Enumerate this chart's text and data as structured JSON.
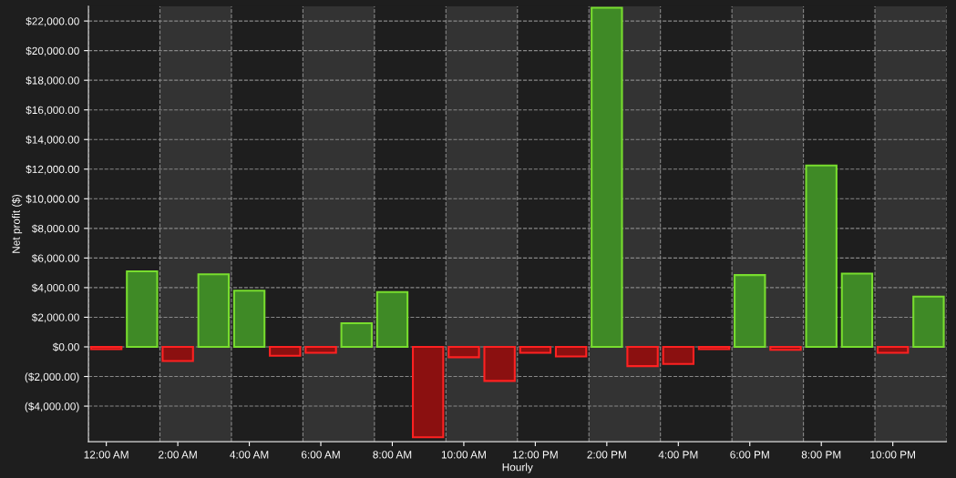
{
  "chart_data": {
    "type": "bar",
    "xlabel": "Hourly",
    "ylabel": "Net profit ($)",
    "x": [
      0,
      1,
      2,
      3,
      4,
      5,
      6,
      7,
      8,
      9,
      10,
      11,
      12,
      13,
      14,
      15,
      16,
      17,
      18,
      19,
      20,
      21,
      22,
      23
    ],
    "values": [
      -150,
      5100,
      -950,
      4900,
      3800,
      -600,
      -400,
      1600,
      3700,
      -6100,
      -700,
      -2300,
      -400,
      -650,
      22900,
      -1300,
      -1150,
      -150,
      4850,
      -200,
      12250,
      4950,
      -400,
      3400
    ],
    "colors": [
      "#8b1010",
      "#3f8a26",
      "#8b1010",
      "#3f8a26",
      "#3f8a26",
      "#8b1010",
      "#8b1010",
      "#3f8a26",
      "#3f8a26",
      "#8b1010",
      "#8b1010",
      "#8b1010",
      "#8b1010",
      "#8b1010",
      "#3f8a26",
      "#8b1010",
      "#8b1010",
      "#8b1010",
      "#3f8a26",
      "#8b1010",
      "#3f8a26",
      "#3f8a26",
      "#8b1010",
      "#3f8a26"
    ],
    "xlim": [
      -0.5,
      23.5
    ],
    "xticks": [
      {
        "value": 0,
        "label": "12:00 AM"
      },
      {
        "value": 2,
        "label": "2:00 AM"
      },
      {
        "value": 4,
        "label": "4:00 AM"
      },
      {
        "value": 6,
        "label": "6:00 AM"
      },
      {
        "value": 8,
        "label": "8:00 AM"
      },
      {
        "value": 10,
        "label": "10:00 AM"
      },
      {
        "value": 12,
        "label": "12:00 PM"
      },
      {
        "value": 14,
        "label": "2:00 PM"
      },
      {
        "value": 16,
        "label": "4:00 PM"
      },
      {
        "value": 18,
        "label": "6:00 PM"
      },
      {
        "value": 20,
        "label": "8:00 PM"
      },
      {
        "value": 22,
        "label": "10:00 PM"
      }
    ],
    "ylim": [
      -6400,
      23000
    ],
    "yticks": [
      {
        "value": -4000,
        "label": "($4,000.00)"
      },
      {
        "value": -2000,
        "label": "($2,000.00)"
      },
      {
        "value": 0,
        "label": "$0.00"
      },
      {
        "value": 2000,
        "label": "$2,000.00"
      },
      {
        "value": 4000,
        "label": "$4,000.00"
      },
      {
        "value": 6000,
        "label": "$6,000.00"
      },
      {
        "value": 8000,
        "label": "$8,000.00"
      },
      {
        "value": 10000,
        "label": "$10,000.00"
      },
      {
        "value": 12000,
        "label": "$12,000.00"
      },
      {
        "value": 14000,
        "label": "$14,000.00"
      },
      {
        "value": 16000,
        "label": "$16,000.00"
      },
      {
        "value": 18000,
        "label": "$18,000.00"
      },
      {
        "value": 20000,
        "label": "$20,000.00"
      },
      {
        "value": 22000,
        "label": "$22,000.00"
      }
    ],
    "bands": [
      {
        "axis": "x",
        "from": 1.5,
        "to": 3.5,
        "color": "#333333"
      },
      {
        "axis": "x",
        "from": 5.5,
        "to": 7.5,
        "color": "#333333"
      },
      {
        "axis": "x",
        "from": 9.5,
        "to": 11.5,
        "color": "#333333"
      },
      {
        "axis": "x",
        "from": 13.5,
        "to": 15.5,
        "color": "#333333"
      },
      {
        "axis": "x",
        "from": 17.5,
        "to": 19.5,
        "color": "#333333"
      },
      {
        "axis": "x",
        "from": 21.5,
        "to": 23.5,
        "color": "#333333"
      }
    ],
    "grid": true
  }
}
